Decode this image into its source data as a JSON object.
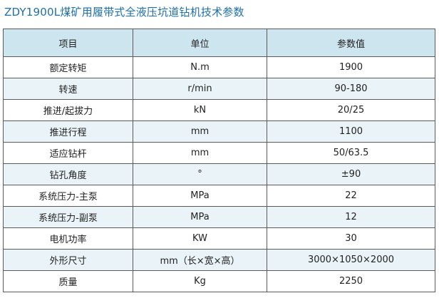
{
  "page": {
    "title": "ZDY1900L煤矿用履带式全液压坑道钻机技术参数"
  },
  "table": {
    "headers": [
      "项目",
      "单位",
      "参数值"
    ],
    "rows": [
      [
        "额定转矩",
        "N.m",
        "1900"
      ],
      [
        "转速",
        "r/min",
        "90-180"
      ],
      [
        "推进/起拔力",
        "kN",
        "20/25"
      ],
      [
        "推进行程",
        "mm",
        "1100"
      ],
      [
        "适应钻杆",
        "mm",
        "50/63.5"
      ],
      [
        "钻孔角度",
        "°",
        "±90"
      ],
      [
        "系统压力-主泵",
        "MPa",
        "22"
      ],
      [
        "系统压力-副泵",
        "MPa",
        "12"
      ],
      [
        "电机功率",
        "KW",
        "30"
      ],
      [
        "外形尺寸",
        "mm（长×宽×高）",
        "3000×1050×2000"
      ],
      [
        "质量",
        "Kg",
        "2250"
      ]
    ]
  },
  "colors": {
    "title": "#1e6fa8",
    "header_bg": "#cde5ef",
    "stripe_bg": "#eaf4f8",
    "border": "#5a5a5a"
  }
}
